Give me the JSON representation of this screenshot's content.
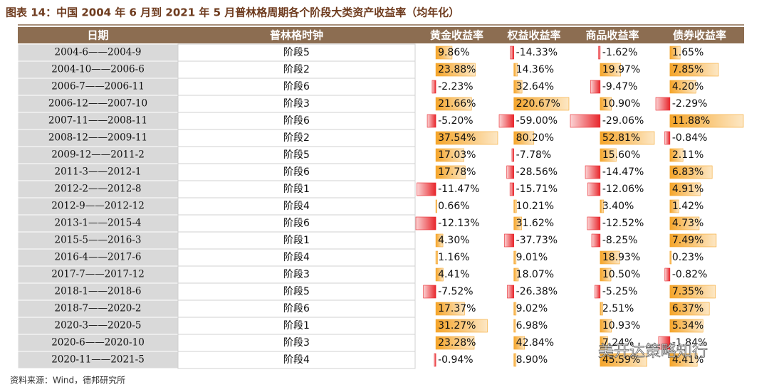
{
  "title": "图表 14：中国 2004 年 6 月到 2021 年 5 月普林格周期各个阶段大类资产收益率（均年化）",
  "table": {
    "headers": [
      "日期",
      "普林格时钟",
      "黄金收益率",
      "权益收益率",
      "商品收益率",
      "债券收益率"
    ],
    "rows": [
      {
        "period": "2004-6——2004-9",
        "stage": "阶段5",
        "values": [
          9.86,
          -14.33,
          -1.62,
          1.65
        ],
        "labels": [
          "9.86%",
          "-14.33%",
          "-1.62%",
          "1.65%"
        ]
      },
      {
        "period": "2004-10——2006-6",
        "stage": "阶段2",
        "values": [
          23.88,
          14.36,
          19.97,
          7.85
        ],
        "labels": [
          "23.88%",
          "14.36%",
          "19.97%",
          "7.85%"
        ]
      },
      {
        "period": "2006-7——2006-11",
        "stage": "阶段6",
        "values": [
          -2.23,
          32.64,
          -9.47,
          4.2
        ],
        "labels": [
          "-2.23%",
          "32.64%",
          "-9.47%",
          "4.20%"
        ]
      },
      {
        "period": "2006-12——2007-10",
        "stage": "阶段3",
        "values": [
          21.66,
          220.67,
          10.9,
          -2.29
        ],
        "labels": [
          "21.66%",
          "220.67%",
          "10.90%",
          "-2.29%"
        ]
      },
      {
        "period": "2007-11——2008-11",
        "stage": "阶段6",
        "values": [
          -5.2,
          -59.0,
          -29.06,
          11.88
        ],
        "labels": [
          "-5.20%",
          "-59.00%",
          "-29.06%",
          "11.88%"
        ]
      },
      {
        "period": "2008-12——2009-11",
        "stage": "阶段2",
        "values": [
          37.54,
          80.2,
          52.81,
          -0.84
        ],
        "labels": [
          "37.54%",
          "80.20%",
          "52.81%",
          "-0.84%"
        ]
      },
      {
        "period": "2009-12——2011-2",
        "stage": "阶段5",
        "values": [
          17.03,
          -7.78,
          15.6,
          2.11
        ],
        "labels": [
          "17.03%",
          "-7.78%",
          "15.60%",
          "2.11%"
        ]
      },
      {
        "period": "2011-3——2012-1",
        "stage": "阶段6",
        "values": [
          17.78,
          -28.56,
          -14.47,
          6.83
        ],
        "labels": [
          "17.78%",
          "-28.56%",
          "-14.47%",
          "6.83%"
        ]
      },
      {
        "period": "2012-2——2012-8",
        "stage": "阶段1",
        "values": [
          -11.47,
          -15.71,
          -12.06,
          4.91
        ],
        "labels": [
          "-11.47%",
          "-15.71%",
          "-12.06%",
          "4.91%"
        ]
      },
      {
        "period": "2012-9——2012-12",
        "stage": "阶段4",
        "values": [
          0.66,
          10.21,
          3.4,
          1.42
        ],
        "labels": [
          "0.66%",
          "10.21%",
          "3.40%",
          "1.42%"
        ]
      },
      {
        "period": "2013-1——2015-4",
        "stage": "阶段6",
        "values": [
          -12.13,
          31.62,
          -12.52,
          4.73
        ],
        "labels": [
          "-12.13%",
          "31.62%",
          "-12.52%",
          "4.73%"
        ]
      },
      {
        "period": "2015-5——2016-3",
        "stage": "阶段1",
        "values": [
          4.3,
          -37.73,
          -8.25,
          7.49
        ],
        "labels": [
          "4.30%",
          "-37.73%",
          "-8.25%",
          "7.49%"
        ]
      },
      {
        "period": "2016-4——2017-6",
        "stage": "阶段4",
        "values": [
          1.16,
          9.01,
          18.93,
          0.23
        ],
        "labels": [
          "1.16%",
          "9.01%",
          "18.93%",
          "0.23%"
        ]
      },
      {
        "period": "2017-7——2017-12",
        "stage": "阶段3",
        "values": [
          4.41,
          18.07,
          10.5,
          -0.82
        ],
        "labels": [
          "4.41%",
          "18.07%",
          "10.50%",
          "-0.82%"
        ]
      },
      {
        "period": "2018-1——2018-6",
        "stage": "阶段5",
        "values": [
          -7.52,
          -26.38,
          -5.25,
          7.35
        ],
        "labels": [
          "-7.52%",
          "-26.38%",
          "-5.25%",
          "7.35%"
        ]
      },
      {
        "period": "2018-7——2020-2",
        "stage": "阶段6",
        "values": [
          17.37,
          9.02,
          2.51,
          6.37
        ],
        "labels": [
          "17.37%",
          "9.02%",
          "2.51%",
          "6.37%"
        ]
      },
      {
        "period": "2020-3——2020-5",
        "stage": "阶段1",
        "values": [
          31.27,
          6.98,
          10.93,
          5.34
        ],
        "labels": [
          "31.27%",
          "6.98%",
          "10.93%",
          "5.34%"
        ]
      },
      {
        "period": "2020-6——2020-10",
        "stage": "阶段3",
        "values": [
          23.28,
          42.84,
          7.24,
          -1.84
        ],
        "labels": [
          "23.28%",
          "42.84%",
          "7.24%",
          "-1.84%"
        ]
      },
      {
        "period": "2020-11——2021-5",
        "stage": "阶段4",
        "values": [
          -0.94,
          8.9,
          45.59,
          4.41
        ],
        "labels": [
          "-0.94%",
          "8.90%",
          "45.59%",
          "4.41%"
        ]
      }
    ]
  },
  "source": "资料来源：Wind，德邦研究所",
  "watermark": "美开达策略知行"
}
